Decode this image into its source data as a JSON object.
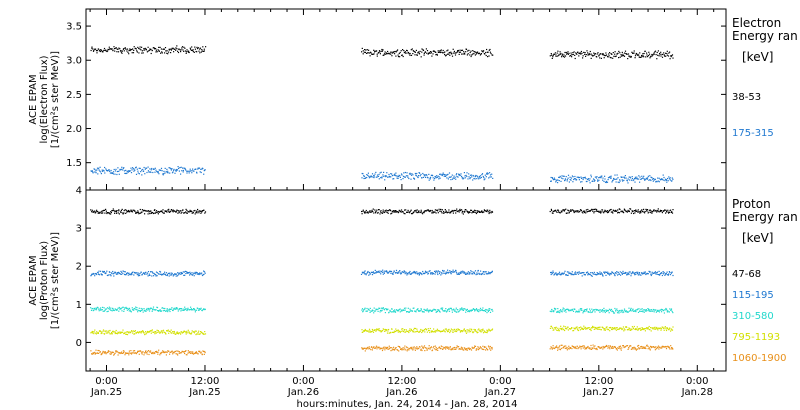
{
  "chart_data": {
    "type": "scatter",
    "xlabel": "hours:minutes, Jan. 24, 2014 - Jan. 28, 2014",
    "x_ticks": [
      {
        "time": "0:00",
        "date": "Jan.25",
        "hours_since_jan24": 24
      },
      {
        "time": "12:00",
        "date": "Jan.25",
        "hours_since_jan24": 36
      },
      {
        "time": "0:00",
        "date": "Jan.26",
        "hours_since_jan24": 48
      },
      {
        "time": "12:00",
        "date": "Jan.26",
        "hours_since_jan24": 60
      },
      {
        "time": "0:00",
        "date": "Jan.27",
        "hours_since_jan24": 72
      },
      {
        "time": "12:00",
        "date": "Jan.27",
        "hours_since_jan24": 84
      },
      {
        "time": "0:00",
        "date": "Jan.28",
        "hours_since_jan24": 96
      }
    ],
    "xlim_hours": [
      21.5,
      99.5
    ],
    "data_segments_hours": [
      [
        22,
        36
      ],
      [
        55,
        71
      ],
      [
        78,
        93
      ]
    ],
    "panels": [
      {
        "id": "electron",
        "ylabel_lines": [
          "ACE EPAM",
          "log(Electron Flux)",
          "[1/(cm²s ster MeV)]"
        ],
        "ylim": [
          1.1,
          3.75
        ],
        "yticks": [
          "1.5",
          "2.0",
          "2.5",
          "3.0",
          "3.5"
        ],
        "legend_title_lines": [
          "Electron",
          "Energy ran"
        ],
        "legend_unit": "[keV]",
        "series": [
          {
            "name": "38-53",
            "color": "#000000",
            "levels": [
              3.16,
              3.12,
              3.09
            ]
          },
          {
            "name": "175-315",
            "color": "#1f78d0",
            "levels": [
              1.39,
              1.31,
              1.27
            ]
          }
        ]
      },
      {
        "id": "proton",
        "ylabel_lines": [
          "ACE EPAM",
          "log(Proton Flux)",
          "[1/(cm²s ster MeV)]"
        ],
        "ylim": [
          -0.75,
          4.0
        ],
        "yticks": [
          "0",
          "1",
          "2",
          "3",
          "4"
        ],
        "legend_title_lines": [
          "Proton",
          "Energy ran"
        ],
        "legend_unit": "[keV]",
        "series": [
          {
            "name": "47-68",
            "color": "#000000",
            "levels": [
              3.45,
              3.45,
              3.46
            ]
          },
          {
            "name": "115-195",
            "color": "#1f78d0",
            "levels": [
              1.82,
              1.85,
              1.82
            ]
          },
          {
            "name": "310-580",
            "color": "#22d8cc",
            "levels": [
              0.88,
              0.86,
              0.85
            ]
          },
          {
            "name": "795-1193",
            "color": "#d2e000",
            "levels": [
              0.28,
              0.32,
              0.38
            ]
          },
          {
            "name": "1060-1900",
            "color": "#e8901a",
            "levels": [
              -0.25,
              -0.14,
              -0.12
            ]
          }
        ]
      }
    ]
  }
}
